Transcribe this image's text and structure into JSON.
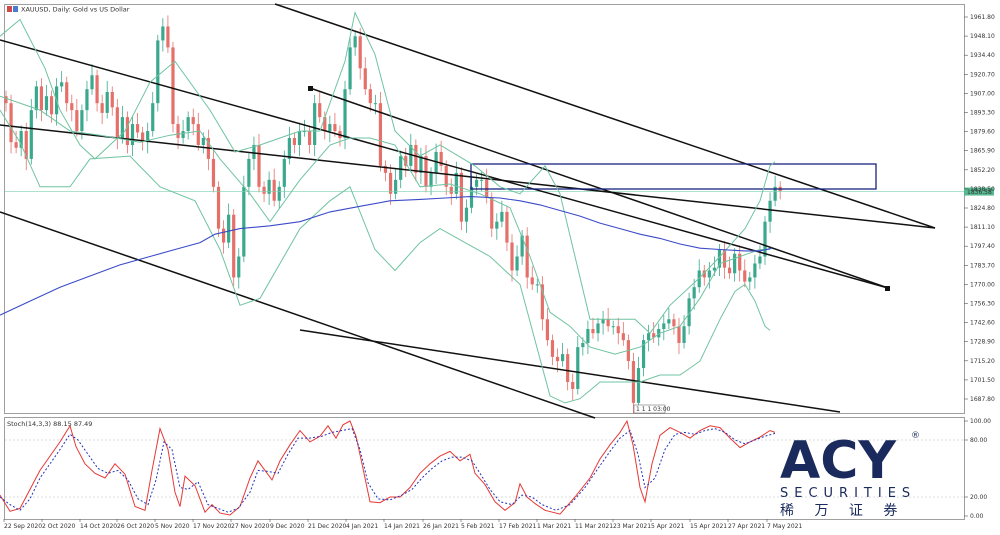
{
  "header": {
    "symbol_line": "XAUUSD, Daily: Gold vs US Dollar",
    "stoch_line": "Stoch(14,3,3) 88.15 87.49"
  },
  "chart_data": {
    "type": "candlestick",
    "symbol": "XAUUSD",
    "timeframe": "Daily",
    "description": "Gold vs US Dollar",
    "y_ticks": [
      "1961.80",
      "1948.10",
      "1934.40",
      "1920.70",
      "1907.00",
      "1893.30",
      "1879.60",
      "1865.90",
      "1852.20",
      "1838.50",
      "1824.80",
      "1811.10",
      "1797.40",
      "1783.70",
      "1770.00",
      "1756.30",
      "1742.60",
      "1728.90",
      "1715.20",
      "1701.50",
      "1687.80"
    ],
    "ylim": [
      1682,
      1970
    ],
    "current_price_label": "1836.58",
    "current_price": 1836.6,
    "marker_label": "1 1 1 03:00",
    "x_labels": [
      "22 Sep 2020",
      "2 Oct 2020",
      "14 Oct 2020",
      "26 Oct 2020",
      "5 Nov 2020",
      "17 Nov 2020",
      "27 Nov 2020",
      "9 Dec 2020",
      "21 Dec 2020",
      "4 Jan 2021",
      "14 Jan 2021",
      "26 Jan 2021",
      "5 Feb 2021",
      "17 Feb 2021",
      "1 Mar 2021",
      "11 Mar 2021",
      "23 Mar 2021",
      "5 Apr 2021",
      "15 Apr 2021",
      "27 Apr 2021",
      "7 May 2021"
    ],
    "close_series": [
      1900,
      1872,
      1868,
      1880,
      1860,
      1895,
      1912,
      1895,
      1905,
      1892,
      1912,
      1915,
      1900,
      1895,
      1880,
      1895,
      1910,
      1920,
      1900,
      1893,
      1908,
      1897,
      1875,
      1890,
      1870,
      1885,
      1879,
      1872,
      1880,
      1900,
      1945,
      1955,
      1940,
      1885,
      1875,
      1880,
      1890,
      1885,
      1870,
      1875,
      1860,
      1840,
      1810,
      1800,
      1820,
      1775,
      1790,
      1840,
      1860,
      1870,
      1840,
      1835,
      1845,
      1830,
      1840,
      1860,
      1875,
      1870,
      1880,
      1880,
      1870,
      1900,
      1890,
      1880,
      1885,
      1880,
      1875,
      1910,
      1940,
      1948,
      1925,
      1910,
      1900,
      1900,
      1855,
      1850,
      1835,
      1845,
      1862,
      1855,
      1870,
      1850,
      1862,
      1840,
      1850,
      1865,
      1855,
      1840,
      1835,
      1850,
      1815,
      1825,
      1840,
      1845,
      1845,
      1832,
      1810,
      1815,
      1822,
      1800,
      1780,
      1790,
      1805,
      1775,
      1770,
      1770,
      1745,
      1730,
      1718,
      1715,
      1720,
      1700,
      1695,
      1725,
      1728,
      1738,
      1735,
      1742,
      1745,
      1740,
      1740,
      1735,
      1730,
      1715,
      1685,
      1710,
      1730,
      1735,
      1732,
      1738,
      1742,
      1745,
      1740,
      1728,
      1740,
      1760,
      1768,
      1780,
      1775,
      1780,
      1782,
      1795,
      1782,
      1778,
      1792,
      1780,
      1772,
      1775,
      1785,
      1790,
      1815,
      1830,
      1840,
      1837
    ],
    "bb_upper": [
      [
        0,
        1948
      ],
      [
        20,
        1960
      ],
      [
        45,
        1925
      ],
      [
        60,
        1895
      ],
      [
        80,
        1870
      ],
      [
        95,
        1860
      ],
      [
        125,
        1880
      ],
      [
        150,
        1915
      ],
      [
        175,
        1930
      ],
      [
        210,
        1895
      ],
      [
        235,
        1865
      ],
      [
        260,
        1870
      ],
      [
        300,
        1880
      ],
      [
        320,
        1880
      ],
      [
        345,
        1930
      ],
      [
        355,
        1965
      ],
      [
        375,
        1935
      ],
      [
        395,
        1880
      ],
      [
        420,
        1862
      ],
      [
        440,
        1870
      ],
      [
        475,
        1855
      ],
      [
        500,
        1840
      ],
      [
        520,
        1835
      ],
      [
        545,
        1855
      ],
      [
        560,
        1835
      ],
      [
        575,
        1790
      ],
      [
        590,
        1745
      ],
      [
        610,
        1745
      ],
      [
        635,
        1745
      ],
      [
        650,
        1735
      ],
      [
        670,
        1755
      ],
      [
        700,
        1775
      ],
      [
        720,
        1790
      ],
      [
        745,
        1810
      ],
      [
        760,
        1830
      ],
      [
        770,
        1855
      ],
      [
        775,
        1858
      ]
    ],
    "bb_lower": [
      [
        0,
        1895
      ],
      [
        20,
        1872
      ],
      [
        40,
        1840
      ],
      [
        70,
        1840
      ],
      [
        90,
        1860
      ],
      [
        130,
        1862
      ],
      [
        160,
        1840
      ],
      [
        195,
        1830
      ],
      [
        220,
        1795
      ],
      [
        240,
        1755
      ],
      [
        260,
        1760
      ],
      [
        300,
        1810
      ],
      [
        330,
        1830
      ],
      [
        350,
        1840
      ],
      [
        375,
        1795
      ],
      [
        395,
        1780
      ],
      [
        420,
        1800
      ],
      [
        440,
        1810
      ],
      [
        465,
        1800
      ],
      [
        490,
        1790
      ],
      [
        520,
        1770
      ],
      [
        535,
        1730
      ],
      [
        550,
        1690
      ],
      [
        565,
        1685
      ],
      [
        580,
        1688
      ],
      [
        600,
        1700
      ],
      [
        620,
        1700
      ],
      [
        640,
        1700
      ],
      [
        660,
        1705
      ],
      [
        680,
        1705
      ],
      [
        700,
        1715
      ],
      [
        720,
        1745
      ],
      [
        735,
        1765
      ],
      [
        745,
        1770
      ],
      [
        755,
        1758
      ],
      [
        765,
        1740
      ],
      [
        770,
        1737
      ]
    ],
    "bb_middle": [
      [
        0,
        1905
      ],
      [
        40,
        1895
      ],
      [
        70,
        1880
      ],
      [
        100,
        1877
      ],
      [
        140,
        1872
      ],
      [
        170,
        1877
      ],
      [
        200,
        1880
      ],
      [
        220,
        1860
      ],
      [
        250,
        1835
      ],
      [
        270,
        1815
      ],
      [
        300,
        1845
      ],
      [
        330,
        1870
      ],
      [
        350,
        1875
      ],
      [
        370,
        1875
      ],
      [
        395,
        1870
      ],
      [
        420,
        1840
      ],
      [
        450,
        1842
      ],
      [
        480,
        1835
      ],
      [
        510,
        1825
      ],
      [
        530,
        1790
      ],
      [
        550,
        1750
      ],
      [
        570,
        1740
      ],
      [
        590,
        1725
      ],
      [
        615,
        1720
      ],
      [
        640,
        1725
      ],
      [
        660,
        1735
      ],
      [
        680,
        1740
      ],
      [
        700,
        1760
      ],
      [
        720,
        1785
      ],
      [
        740,
        1790
      ],
      [
        760,
        1795
      ],
      [
        770,
        1795
      ]
    ],
    "ma_line": [
      [
        0,
        1748
      ],
      [
        30,
        1758
      ],
      [
        60,
        1768
      ],
      [
        90,
        1776
      ],
      [
        120,
        1784
      ],
      [
        150,
        1790
      ],
      [
        175,
        1795
      ],
      [
        200,
        1800
      ],
      [
        215,
        1806
      ],
      [
        240,
        1810
      ],
      [
        270,
        1812
      ],
      [
        300,
        1815
      ],
      [
        330,
        1822
      ],
      [
        360,
        1826
      ],
      [
        390,
        1830
      ],
      [
        420,
        1831
      ],
      [
        445,
        1832
      ],
      [
        470,
        1833
      ],
      [
        500,
        1832
      ],
      [
        520,
        1830
      ],
      [
        540,
        1827
      ],
      [
        560,
        1823
      ],
      [
        580,
        1819
      ],
      [
        600,
        1814
      ],
      [
        620,
        1810
      ],
      [
        640,
        1806
      ],
      [
        660,
        1803
      ],
      [
        680,
        1799
      ],
      [
        700,
        1796
      ],
      [
        720,
        1795
      ],
      [
        745,
        1794
      ],
      [
        760,
        1794
      ],
      [
        772,
        1796
      ]
    ],
    "stoch_ticks": [
      "100.00",
      "80.00",
      "20.00",
      "0.00"
    ],
    "stoch_levels": [
      80,
      20
    ],
    "stoch_k": [
      [
        0,
        22
      ],
      [
        10,
        5
      ],
      [
        20,
        8
      ],
      [
        30,
        28
      ],
      [
        40,
        48
      ],
      [
        50,
        63
      ],
      [
        60,
        78
      ],
      [
        70,
        95
      ],
      [
        76,
        73
      ],
      [
        85,
        55
      ],
      [
        95,
        45
      ],
      [
        105,
        40
      ],
      [
        115,
        55
      ],
      [
        125,
        44
      ],
      [
        135,
        10
      ],
      [
        145,
        6
      ],
      [
        152,
        48
      ],
      [
        160,
        92
      ],
      [
        168,
        70
      ],
      [
        175,
        25
      ],
      [
        180,
        10
      ],
      [
        185,
        42
      ],
      [
        195,
        32
      ],
      [
        205,
        4
      ],
      [
        212,
        12
      ],
      [
        220,
        3
      ],
      [
        230,
        1
      ],
      [
        240,
        10
      ],
      [
        250,
        40
      ],
      [
        258,
        58
      ],
      [
        265,
        48
      ],
      [
        272,
        38
      ],
      [
        280,
        58
      ],
      [
        290,
        75
      ],
      [
        300,
        90
      ],
      [
        310,
        78
      ],
      [
        320,
        84
      ],
      [
        328,
        95
      ],
      [
        336,
        82
      ],
      [
        343,
        96
      ],
      [
        350,
        100
      ],
      [
        356,
        84
      ],
      [
        362,
        55
      ],
      [
        370,
        15
      ],
      [
        380,
        14
      ],
      [
        390,
        20
      ],
      [
        400,
        20
      ],
      [
        410,
        30
      ],
      [
        420,
        45
      ],
      [
        430,
        55
      ],
      [
        440,
        63
      ],
      [
        450,
        68
      ],
      [
        460,
        58
      ],
      [
        470,
        65
      ],
      [
        475,
        45
      ],
      [
        485,
        33
      ],
      [
        495,
        15
      ],
      [
        505,
        6
      ],
      [
        515,
        14
      ],
      [
        520,
        34
      ],
      [
        527,
        20
      ],
      [
        535,
        13
      ],
      [
        545,
        6
      ],
      [
        560,
        2
      ],
      [
        575,
        20
      ],
      [
        590,
        40
      ],
      [
        600,
        60
      ],
      [
        610,
        75
      ],
      [
        620,
        88
      ],
      [
        627,
        100
      ],
      [
        633,
        75
      ],
      [
        640,
        30
      ],
      [
        645,
        15
      ],
      [
        652,
        55
      ],
      [
        660,
        85
      ],
      [
        670,
        93
      ],
      [
        680,
        88
      ],
      [
        690,
        82
      ],
      [
        700,
        90
      ],
      [
        710,
        95
      ],
      [
        720,
        93
      ],
      [
        730,
        82
      ],
      [
        740,
        72
      ],
      [
        750,
        78
      ],
      [
        760,
        83
      ],
      [
        770,
        90
      ],
      [
        775,
        88
      ]
    ],
    "stoch_d": [
      [
        0,
        20
      ],
      [
        10,
        12
      ],
      [
        20,
        6
      ],
      [
        30,
        18
      ],
      [
        40,
        40
      ],
      [
        50,
        55
      ],
      [
        60,
        70
      ],
      [
        70,
        86
      ],
      [
        78,
        80
      ],
      [
        88,
        65
      ],
      [
        98,
        50
      ],
      [
        108,
        45
      ],
      [
        118,
        48
      ],
      [
        128,
        38
      ],
      [
        138,
        18
      ],
      [
        148,
        12
      ],
      [
        156,
        38
      ],
      [
        164,
        78
      ],
      [
        172,
        70
      ],
      [
        180,
        30
      ],
      [
        188,
        28
      ],
      [
        198,
        36
      ],
      [
        208,
        12
      ],
      [
        218,
        8
      ],
      [
        228,
        4
      ],
      [
        238,
        8
      ],
      [
        250,
        25
      ],
      [
        258,
        48
      ],
      [
        268,
        47
      ],
      [
        278,
        45
      ],
      [
        288,
        65
      ],
      [
        298,
        82
      ],
      [
        310,
        82
      ],
      [
        322,
        84
      ],
      [
        332,
        88
      ],
      [
        342,
        90
      ],
      [
        352,
        92
      ],
      [
        360,
        70
      ],
      [
        368,
        35
      ],
      [
        378,
        18
      ],
      [
        390,
        17
      ],
      [
        402,
        22
      ],
      [
        412,
        28
      ],
      [
        422,
        40
      ],
      [
        432,
        50
      ],
      [
        442,
        58
      ],
      [
        452,
        62
      ],
      [
        462,
        62
      ],
      [
        472,
        58
      ],
      [
        480,
        45
      ],
      [
        490,
        28
      ],
      [
        500,
        15
      ],
      [
        512,
        12
      ],
      [
        522,
        22
      ],
      [
        532,
        20
      ],
      [
        542,
        12
      ],
      [
        556,
        6
      ],
      [
        570,
        12
      ],
      [
        585,
        30
      ],
      [
        598,
        50
      ],
      [
        610,
        68
      ],
      [
        620,
        82
      ],
      [
        630,
        90
      ],
      [
        638,
        65
      ],
      [
        645,
        30
      ],
      [
        655,
        40
      ],
      [
        665,
        70
      ],
      [
        675,
        86
      ],
      [
        685,
        88
      ],
      [
        695,
        86
      ],
      [
        705,
        90
      ],
      [
        715,
        92
      ],
      [
        725,
        88
      ],
      [
        735,
        80
      ],
      [
        745,
        76
      ],
      [
        755,
        80
      ],
      [
        765,
        84
      ],
      [
        775,
        87
      ]
    ]
  },
  "logo": {
    "brand": "ACY",
    "registered": "®",
    "tagline": "SECURITIES",
    "chinese": "稀 万 证 券"
  },
  "colors": {
    "bull": "#3aa88d",
    "bear": "#e5706a",
    "bands": "#6fc3a0",
    "ma": "#3b4bc8",
    "zone": "#1a237e",
    "stoch_k": "#e53935",
    "stoch_d": "#2233bb",
    "brand": "#1a2a5c"
  }
}
